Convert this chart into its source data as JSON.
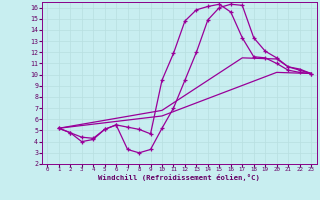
{
  "xlabel": "Windchill (Refroidissement éolien,°C)",
  "bg_color": "#c8eef0",
  "line_color": "#990099",
  "grid_color": "#b8dfe0",
  "xlim": [
    -0.5,
    23.5
  ],
  "ylim": [
    2,
    16.5
  ],
  "xticks": [
    0,
    1,
    2,
    3,
    4,
    5,
    6,
    7,
    8,
    9,
    10,
    11,
    12,
    13,
    14,
    15,
    16,
    17,
    18,
    19,
    20,
    21,
    22,
    23
  ],
  "yticks": [
    2,
    3,
    4,
    5,
    6,
    7,
    8,
    9,
    10,
    11,
    12,
    13,
    14,
    15,
    16
  ],
  "line1_x": [
    1,
    2,
    3,
    4,
    5,
    6,
    7,
    8,
    9,
    10,
    11,
    12,
    13,
    14,
    15,
    16,
    17,
    18,
    19,
    20,
    21,
    22,
    23
  ],
  "line1_y": [
    5.2,
    4.8,
    4.4,
    4.3,
    5.1,
    5.5,
    3.3,
    3.0,
    3.3,
    5.2,
    7.0,
    9.5,
    12.0,
    14.9,
    16.0,
    16.3,
    16.2,
    13.3,
    12.1,
    11.5,
    10.7,
    10.4,
    10.1
  ],
  "line2_x": [
    1,
    2,
    3,
    4,
    5,
    6,
    7,
    8,
    9,
    10,
    11,
    12,
    13,
    14,
    15,
    16,
    17,
    18,
    19,
    20,
    21,
    22,
    23
  ],
  "line2_y": [
    5.2,
    4.8,
    4.0,
    4.2,
    5.1,
    5.5,
    5.3,
    5.1,
    4.7,
    9.5,
    11.9,
    14.8,
    15.8,
    16.1,
    16.3,
    15.6,
    13.3,
    11.6,
    11.5,
    11.0,
    10.4,
    10.2,
    10.1
  ],
  "line3_x": [
    1,
    10,
    20,
    23
  ],
  "line3_y": [
    5.2,
    6.3,
    10.2,
    10.1
  ],
  "line4_x": [
    1,
    10,
    17,
    20,
    21,
    22,
    23
  ],
  "line4_y": [
    5.2,
    6.8,
    11.5,
    11.4,
    10.7,
    10.5,
    10.1
  ]
}
